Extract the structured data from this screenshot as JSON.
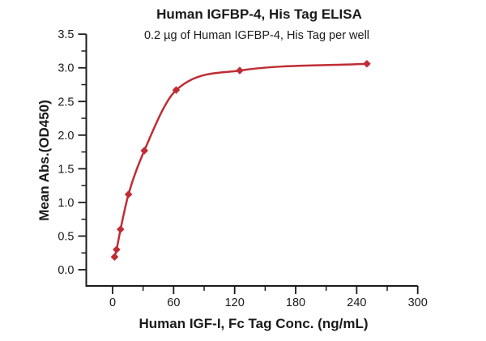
{
  "figure": {
    "title": "Human IGFBP-4, His Tag ELISA",
    "subtitle": "0.2 µg of Human IGFBP-4, His Tag per well"
  },
  "chart_data": {
    "type": "scatter",
    "title": "Human IGFBP-4, His Tag ELISA",
    "subtitle": "0.2 µg of Human IGFBP-4, His Tag per well",
    "xlabel": "Human IGF-I, Fc Tag Conc. (ng/mL)",
    "ylabel": "Mean Abs.(OD450)",
    "x": [
      1.95,
      3.9,
      7.8,
      15.63,
      31.25,
      62.5,
      125,
      250
    ],
    "y": [
      0.19,
      0.3,
      0.6,
      1.12,
      1.77,
      2.67,
      2.96,
      3.06
    ],
    "marker": "diamond",
    "curve": "smooth sigmoidal fit through points",
    "xlim": [
      0,
      300
    ],
    "ylim": [
      0,
      3.5
    ],
    "x_major_ticks": {
      "values": [
        0,
        60,
        120,
        180,
        240,
        300
      ],
      "labels": [
        "0",
        "60",
        "120",
        "180",
        "240",
        "300"
      ]
    },
    "x_minor_ticks": [
      30,
      90,
      150,
      210,
      270
    ],
    "y_major_ticks": {
      "values": [
        0,
        0.5,
        1,
        1.5,
        2,
        2.5,
        3,
        3.5
      ],
      "labels": [
        "0.0",
        "0.5",
        "1.0",
        "1.5",
        "2.0",
        "2.5",
        "3.0",
        "3.5"
      ]
    },
    "y_minor_ticks": [
      0.25,
      0.75,
      1.25,
      1.75,
      2.25,
      2.75,
      3.25
    ],
    "grid": false,
    "legend": false
  },
  "colors": {
    "series": "#BF2D34",
    "axis": "#1a1a1a",
    "text": "#1a1a1a",
    "background": "#ffffff"
  }
}
